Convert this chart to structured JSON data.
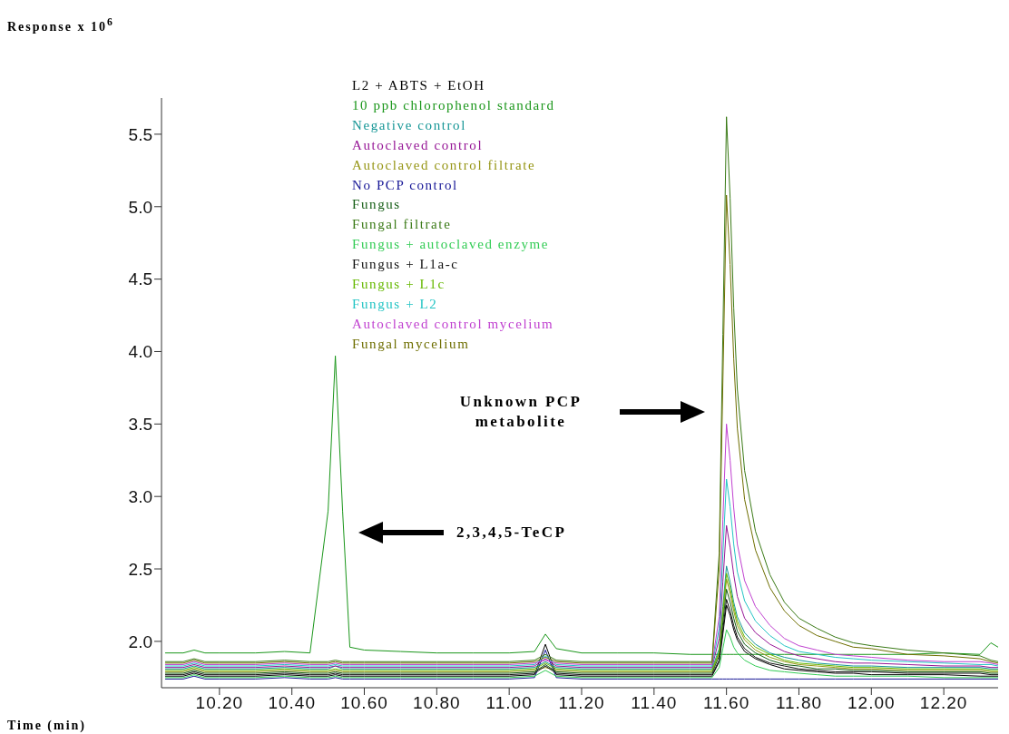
{
  "chart_data": {
    "type": "line",
    "xlabel": "Time (min)",
    "xlim": [
      10.04,
      12.35
    ],
    "ylim": [
      1.68,
      5.75
    ],
    "xticks": [
      {
        "value": 10.2,
        "label": "10.20"
      },
      {
        "value": 10.4,
        "label": "10.40"
      },
      {
        "value": 10.6,
        "label": "10.60"
      },
      {
        "value": 10.8,
        "label": "10.80"
      },
      {
        "value": 11,
        "label": "11.00"
      },
      {
        "value": 11.2,
        "label": "11.20"
      },
      {
        "value": 11.4,
        "label": "11.40"
      },
      {
        "value": 11.6,
        "label": "11.60"
      },
      {
        "value": 11.8,
        "label": "11.80"
      },
      {
        "value": 12,
        "label": "12.00"
      },
      {
        "value": 12.2,
        "label": "12.20"
      }
    ],
    "yticks": [
      {
        "value": 2,
        "label": "2.0"
      },
      2.5,
      {
        "value": 3,
        "label": "3.0"
      },
      3.5,
      {
        "value": 4,
        "label": "4.0"
      },
      4.5,
      {
        "value": 5,
        "label": "5.0"
      },
      5.5
    ],
    "legend": "top",
    "marker": "none",
    "line_style": "solid",
    "annotations": [
      "Response x 10$^{6}$",
      "Unknown PCP metabolite",
      "2,3,4,5-TeCP"
    ],
    "x": [
      10.05,
      10.1,
      10.13,
      10.16,
      10.2,
      10.3,
      10.38,
      10.45,
      10.5,
      10.52,
      10.54,
      10.56,
      10.6,
      10.7,
      10.8,
      10.9,
      11.0,
      11.07,
      11.1,
      11.13,
      11.2,
      11.3,
      11.4,
      11.5,
      11.56,
      11.58,
      11.59,
      11.6,
      11.61,
      11.62,
      11.63,
      11.65,
      11.68,
      11.72,
      11.76,
      11.8,
      11.85,
      11.9,
      11.95,
      12.0,
      12.1,
      12.2,
      12.3,
      12.33,
      12.35
    ],
    "series": [
      {
        "name": "L2 + ABTS + EtOH",
        "color": "#000000",
        "values": [
          1.76,
          1.76,
          1.78,
          1.76,
          1.76,
          1.76,
          1.77,
          1.76,
          1.76,
          1.77,
          1.76,
          1.76,
          1.76,
          1.76,
          1.76,
          1.76,
          1.76,
          1.77,
          1.98,
          1.77,
          1.76,
          1.76,
          1.76,
          1.76,
          1.76,
          1.86,
          2.05,
          2.25,
          2.18,
          2.08,
          2.01,
          1.93,
          1.88,
          1.84,
          1.81,
          1.8,
          1.79,
          1.78,
          1.78,
          1.77,
          1.77,
          1.77,
          1.76,
          1.76,
          1.76
        ]
      },
      {
        "name": "10 ppb chlorophenol standard",
        "color": "#1a961a",
        "values": [
          1.92,
          1.92,
          1.94,
          1.92,
          1.92,
          1.92,
          1.93,
          1.92,
          2.9,
          3.97,
          2.9,
          1.96,
          1.94,
          1.93,
          1.92,
          1.92,
          1.92,
          1.93,
          2.05,
          1.95,
          1.92,
          1.92,
          1.92,
          1.91,
          1.91,
          1.91,
          1.91,
          1.91,
          1.91,
          1.91,
          1.91,
          1.91,
          1.91,
          1.91,
          1.91,
          1.91,
          1.91,
          1.91,
          1.91,
          1.91,
          1.91,
          1.92,
          1.91,
          1.99,
          1.96
        ]
      },
      {
        "name": "Negative control",
        "color": "#169696",
        "values": [
          1.81,
          1.81,
          1.83,
          1.81,
          1.81,
          1.81,
          1.82,
          1.81,
          1.81,
          1.83,
          1.81,
          1.81,
          1.81,
          1.81,
          1.81,
          1.81,
          1.81,
          1.82,
          1.86,
          1.82,
          1.81,
          1.81,
          1.81,
          1.81,
          1.81,
          1.95,
          2.24,
          2.52,
          2.41,
          2.27,
          2.17,
          2.06,
          1.98,
          1.92,
          1.89,
          1.87,
          1.85,
          1.84,
          1.83,
          1.83,
          1.82,
          1.82,
          1.82,
          1.81,
          1.81
        ]
      },
      {
        "name": "Autoclaved control",
        "color": "#961696",
        "values": [
          1.82,
          1.82,
          1.84,
          1.82,
          1.82,
          1.82,
          1.83,
          1.82,
          1.82,
          1.83,
          1.82,
          1.82,
          1.82,
          1.82,
          1.82,
          1.82,
          1.82,
          1.83,
          1.88,
          1.83,
          1.82,
          1.82,
          1.82,
          1.82,
          1.82,
          2.02,
          2.41,
          2.8,
          2.65,
          2.46,
          2.31,
          2.16,
          2.06,
          1.98,
          1.93,
          1.9,
          1.88,
          1.86,
          1.85,
          1.85,
          1.84,
          1.83,
          1.83,
          1.82,
          1.82
        ]
      },
      {
        "name": "Autoclaved control filtrate",
        "color": "#969616",
        "values": [
          1.79,
          1.79,
          1.81,
          1.79,
          1.79,
          1.79,
          1.8,
          1.79,
          1.79,
          1.8,
          1.79,
          1.79,
          1.79,
          1.79,
          1.79,
          1.79,
          1.79,
          1.8,
          1.82,
          1.8,
          1.79,
          1.79,
          1.79,
          1.79,
          1.79,
          1.92,
          2.17,
          2.43,
          2.33,
          2.21,
          2.11,
          2.01,
          1.94,
          1.89,
          1.86,
          1.84,
          1.83,
          1.82,
          1.81,
          1.81,
          1.8,
          1.8,
          1.8,
          1.79,
          1.79
        ]
      },
      {
        "name": "No PCP control",
        "color": "#161696",
        "values": [
          1.74,
          1.74,
          1.76,
          1.74,
          1.74,
          1.74,
          1.75,
          1.74,
          1.74,
          1.75,
          1.74,
          1.74,
          1.74,
          1.74,
          1.74,
          1.74,
          1.74,
          1.75,
          1.94,
          1.75,
          1.74,
          1.74,
          1.74,
          1.74,
          1.74,
          1.74,
          1.74,
          1.74,
          1.74,
          1.74,
          1.74,
          1.74,
          1.74,
          1.74,
          1.74,
          1.74,
          1.74,
          1.74,
          1.74,
          1.74,
          1.74,
          1.74,
          1.74,
          1.74,
          1.74
        ]
      },
      {
        "name": "Fungus",
        "color": "#165e16",
        "values": [
          1.78,
          1.78,
          1.8,
          1.78,
          1.78,
          1.78,
          1.79,
          1.78,
          1.78,
          1.79,
          1.78,
          1.78,
          1.78,
          1.78,
          1.78,
          1.78,
          1.78,
          1.79,
          1.84,
          1.79,
          1.78,
          1.78,
          1.78,
          1.78,
          1.78,
          1.9,
          2.13,
          2.36,
          2.27,
          2.16,
          2.07,
          1.98,
          1.92,
          1.87,
          1.84,
          1.83,
          1.81,
          1.81,
          1.8,
          1.8,
          1.79,
          1.79,
          1.79,
          1.78,
          1.78
        ]
      },
      {
        "name": "Fungal filtrate",
        "color": "#3a7a16",
        "values": [
          1.86,
          1.86,
          1.88,
          1.86,
          1.86,
          1.86,
          1.87,
          1.86,
          1.86,
          1.87,
          1.86,
          1.86,
          1.86,
          1.86,
          1.86,
          1.86,
          1.86,
          1.87,
          1.91,
          1.87,
          1.86,
          1.86,
          1.86,
          1.86,
          1.86,
          2.61,
          4.12,
          5.62,
          5.06,
          4.3,
          3.74,
          3.18,
          2.76,
          2.46,
          2.27,
          2.16,
          2.09,
          2.03,
          1.99,
          1.97,
          1.94,
          1.92,
          1.9,
          1.87,
          1.86
        ]
      },
      {
        "name": "Fungus + autoclaved enzyme",
        "color": "#33cc55",
        "values": [
          1.75,
          1.75,
          1.77,
          1.75,
          1.75,
          1.75,
          1.76,
          1.75,
          1.75,
          1.76,
          1.75,
          1.75,
          1.75,
          1.75,
          1.75,
          1.75,
          1.75,
          1.76,
          1.8,
          1.76,
          1.75,
          1.75,
          1.75,
          1.75,
          1.75,
          1.82,
          1.95,
          2.08,
          2.03,
          1.96,
          1.92,
          1.87,
          1.83,
          1.8,
          1.79,
          1.78,
          1.77,
          1.76,
          1.76,
          1.76,
          1.76,
          1.75,
          1.75,
          1.75,
          1.75
        ]
      },
      {
        "name": "Fungus + L1a-c",
        "color": "#101010",
        "values": [
          1.77,
          1.77,
          1.79,
          1.77,
          1.77,
          1.77,
          1.78,
          1.77,
          1.77,
          1.78,
          1.77,
          1.77,
          1.77,
          1.77,
          1.77,
          1.77,
          1.77,
          1.78,
          1.83,
          1.78,
          1.77,
          1.77,
          1.77,
          1.77,
          1.77,
          1.87,
          2.08,
          2.29,
          2.21,
          2.11,
          2.03,
          1.95,
          1.89,
          1.85,
          1.83,
          1.81,
          1.8,
          1.79,
          1.79,
          1.79,
          1.78,
          1.78,
          1.78,
          1.77,
          1.77
        ]
      },
      {
        "name": "Fungus + L1c",
        "color": "#66b800",
        "values": [
          1.8,
          1.8,
          1.82,
          1.8,
          1.8,
          1.8,
          1.81,
          1.8,
          1.8,
          1.81,
          1.8,
          1.8,
          1.8,
          1.8,
          1.8,
          1.8,
          1.8,
          1.81,
          1.85,
          1.81,
          1.8,
          1.8,
          1.8,
          1.8,
          1.8,
          1.93,
          2.2,
          2.47,
          2.37,
          2.24,
          2.14,
          2.03,
          1.96,
          1.91,
          1.87,
          1.85,
          1.84,
          1.83,
          1.82,
          1.82,
          1.81,
          1.81,
          1.81,
          1.8,
          1.8
        ]
      },
      {
        "name": "Fungus + L2",
        "color": "#22c4c4",
        "values": [
          1.83,
          1.83,
          1.85,
          1.83,
          1.83,
          1.83,
          1.84,
          1.83,
          1.83,
          1.84,
          1.83,
          1.83,
          1.83,
          1.83,
          1.83,
          1.83,
          1.83,
          1.84,
          1.9,
          1.84,
          1.83,
          1.83,
          1.83,
          1.83,
          1.83,
          2.09,
          2.6,
          3.12,
          2.93,
          2.67,
          2.48,
          2.28,
          2.14,
          2.04,
          1.97,
          1.93,
          1.91,
          1.89,
          1.88,
          1.87,
          1.86,
          1.85,
          1.84,
          1.84,
          1.83
        ]
      },
      {
        "name": "Autoclaved control mycelium",
        "color": "#c040d0",
        "values": [
          1.84,
          1.84,
          1.86,
          1.84,
          1.84,
          1.84,
          1.85,
          1.84,
          1.84,
          1.85,
          1.84,
          1.84,
          1.84,
          1.84,
          1.84,
          1.84,
          1.84,
          1.85,
          1.87,
          1.85,
          1.84,
          1.84,
          1.84,
          1.84,
          1.84,
          2.17,
          2.84,
          3.5,
          3.25,
          2.92,
          2.67,
          2.42,
          2.24,
          2.11,
          2.02,
          1.97,
          1.94,
          1.91,
          1.9,
          1.89,
          1.87,
          1.86,
          1.86,
          1.85,
          1.84
        ]
      },
      {
        "name": "Fungal mycelium",
        "color": "#6e6e00",
        "values": [
          1.85,
          1.85,
          1.87,
          1.85,
          1.85,
          1.85,
          1.86,
          1.85,
          1.85,
          1.86,
          1.85,
          1.85,
          1.85,
          1.85,
          1.85,
          1.85,
          1.85,
          1.86,
          1.89,
          1.86,
          1.85,
          1.85,
          1.85,
          1.85,
          1.85,
          2.5,
          3.79,
          5.08,
          4.6,
          3.95,
          3.47,
          2.98,
          2.63,
          2.37,
          2.21,
          2.11,
          2.04,
          2.0,
          1.96,
          1.95,
          1.91,
          1.9,
          1.88,
          1.86,
          1.85
        ]
      }
    ]
  }
}
